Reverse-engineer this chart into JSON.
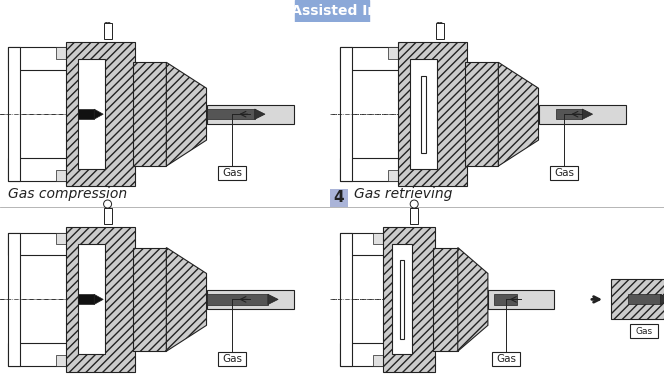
{
  "title": "Analysis of Gas Assisted Injection Molding",
  "title_bg_color": "#5b7fc4",
  "title_text_color": "#ffffff",
  "bg_color": "#ffffff",
  "number_box_color": "#aab4d8",
  "label_gas_compression": "Gas compression",
  "label_number": "4",
  "label_gas_retrieving": "Gas retrieving",
  "divider_color": "#5b7fc4",
  "figsize": [
    6.64,
    3.92
  ],
  "dpi": 100,
  "label_fontsize": 10,
  "number_fontsize": 11,
  "title_fontsize": 10
}
